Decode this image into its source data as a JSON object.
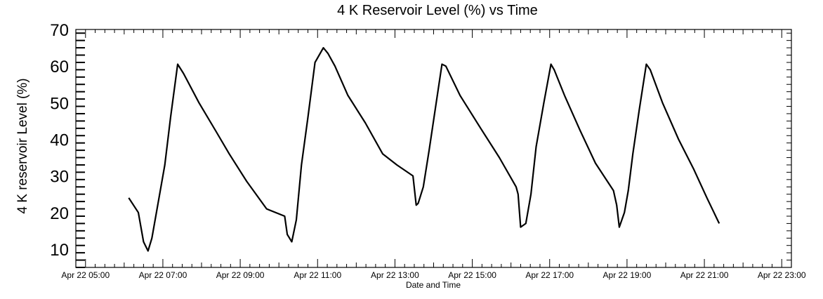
{
  "chart_data": {
    "type": "line",
    "title": "4 K Reservoir Level (%) vs Time",
    "xlabel": "Date and Time",
    "ylabel": "4 K reservoir Level (%)",
    "xlim": [
      "Apr 22 04:45",
      "Apr 22 23:15"
    ],
    "ylim": [
      5,
      70
    ],
    "yticks": [
      10,
      20,
      30,
      40,
      50,
      60,
      70
    ],
    "xticks": [
      {
        "t": "Apr 22 05:00",
        "label": "Apr 22 05:00"
      },
      {
        "t": "Apr 22 07:00",
        "label": "Apr 22 07:00"
      },
      {
        "t": "Apr 22 09:00",
        "label": "Apr 22 09:00"
      },
      {
        "t": "Apr 22 11:00",
        "label": "Apr 22 11:00"
      },
      {
        "t": "Apr 22 13:00",
        "label": "Apr 22 13:00"
      },
      {
        "t": "Apr 22 15:00",
        "label": "Apr 22 15:00"
      },
      {
        "t": "Apr 22 17:00",
        "label": "Apr 22 17:00"
      },
      {
        "t": "Apr 22 19:00",
        "label": "Apr 22 19:00"
      },
      {
        "t": "Apr 22 21:00",
        "label": "Apr 22 21:00"
      },
      {
        "t": "Apr 22 23:00",
        "label": "Apr 22 23:00"
      }
    ],
    "grid": false,
    "series": [
      {
        "color": "#000000",
        "x": [
          "Apr 22 06:07",
          "Apr 22 06:22",
          "Apr 22 06:30",
          "Apr 22 06:37",
          "Apr 22 06:43",
          "Apr 22 06:52",
          "Apr 22 07:03",
          "Apr 22 07:12",
          "Apr 22 07:23",
          "Apr 22 07:32",
          "Apr 22 07:38",
          "Apr 22 07:56",
          "Apr 22 08:23",
          "Apr 22 08:43",
          "Apr 22 09:10",
          "Apr 22 09:41",
          "Apr 22 10:09",
          "Apr 22 10:13",
          "Apr 22 10:20",
          "Apr 22 10:27",
          "Apr 22 10:35",
          "Apr 22 10:45",
          "Apr 22 10:56",
          "Apr 22 11:09",
          "Apr 22 11:16",
          "Apr 22 11:27",
          "Apr 22 11:47",
          "Apr 22 12:14",
          "Apr 22 12:41",
          "Apr 22 13:03",
          "Apr 22 13:28",
          "Apr 22 13:33",
          "Apr 22 13:36",
          "Apr 22 13:44",
          "Apr 22 13:53",
          "Apr 22 14:04",
          "Apr 22 14:13",
          "Apr 22 14:19",
          "Apr 22 14:41",
          "Apr 22 15:13",
          "Apr 22 15:42",
          "Apr 22 16:08",
          "Apr 22 16:11",
          "Apr 22 16:15",
          "Apr 22 16:23",
          "Apr 22 16:31",
          "Apr 22 16:39",
          "Apr 22 16:51",
          "Apr 22 17:02",
          "Apr 22 17:07",
          "Apr 22 17:23",
          "Apr 22 17:47",
          "Apr 22 18:11",
          "Apr 22 18:39",
          "Apr 22 18:44",
          "Apr 22 18:48",
          "Apr 22 18:56",
          "Apr 22 19:02",
          "Apr 22 19:09",
          "Apr 22 19:19",
          "Apr 22 19:30",
          "Apr 22 19:36",
          "Apr 22 19:55",
          "Apr 22 20:20",
          "Apr 22 20:43",
          "Apr 22 21:04",
          "Apr 22 21:23"
        ],
        "y": [
          24,
          20,
          12,
          9.5,
          13,
          22,
          33,
          46,
          60.5,
          58,
          56,
          50,
          42,
          36,
          28.5,
          21,
          19,
          14,
          12,
          18,
          33,
          46,
          61,
          65,
          63.5,
          60,
          52,
          44.5,
          36,
          33,
          30,
          22,
          22.5,
          27,
          37,
          50,
          60.5,
          60,
          52,
          43,
          35,
          27,
          25,
          16,
          17,
          25,
          38,
          50,
          60.5,
          59,
          52,
          42.5,
          33.5,
          26,
          22,
          16,
          20,
          26,
          36,
          48,
          60.5,
          59,
          50,
          40,
          32,
          24,
          17
        ]
      }
    ]
  }
}
